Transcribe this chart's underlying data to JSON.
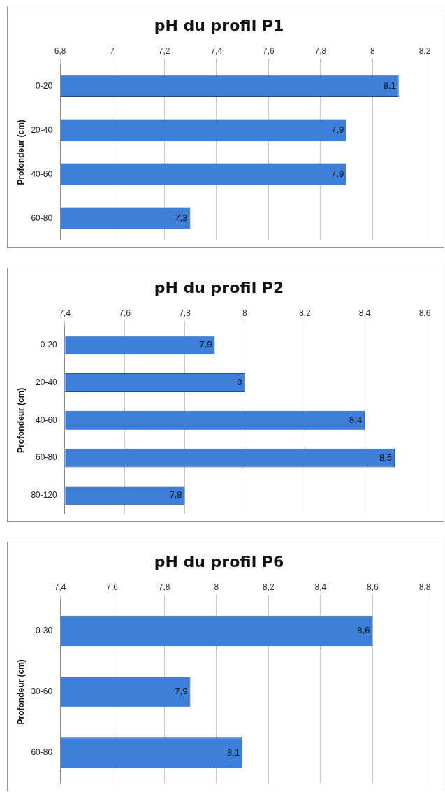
{
  "chart_data": [
    {
      "type": "bar",
      "orientation": "horizontal",
      "title": "pH du profil P1",
      "ylabel": "Profondeur (cm)",
      "categories": [
        "0-20",
        "20-40",
        "40-60",
        "60-80"
      ],
      "values": [
        8.1,
        7.9,
        7.9,
        7.3
      ],
      "value_labels": [
        "8,1",
        "7,9",
        "7,9",
        "7,3"
      ],
      "color": "#3d7fd9",
      "xlim": [
        6.8,
        8.2
      ],
      "xticks": [
        {
          "value": 6.8,
          "label": "6,8"
        },
        {
          "value": 7,
          "label": "7"
        },
        {
          "value": 7.2,
          "label": "7,2"
        },
        {
          "value": 7.4,
          "label": "7,4"
        },
        {
          "value": 7.6,
          "label": "7,6"
        },
        {
          "value": 7.8,
          "label": "7,8"
        },
        {
          "value": 8,
          "label": "8"
        },
        {
          "value": 8.2,
          "label": "8,2"
        }
      ],
      "grid": "x"
    },
    {
      "type": "bar",
      "orientation": "horizontal",
      "title": "pH du profil P2",
      "ylabel": "Profondeur (cm)",
      "categories": [
        "0-20",
        "20-40",
        "40-60",
        "60-80",
        "80-120"
      ],
      "values": [
        7.9,
        8,
        8.4,
        8.5,
        7.8
      ],
      "value_labels": [
        "7,9",
        "8",
        "8,4",
        "8,5",
        "7,8"
      ],
      "color": "#3d7fd9",
      "xlim": [
        7.4,
        8.6
      ],
      "xticks": [
        {
          "value": 7.4,
          "label": "7,4"
        },
        {
          "value": 7.6,
          "label": "7,6"
        },
        {
          "value": 7.8,
          "label": "7,8"
        },
        {
          "value": 8,
          "label": "8"
        },
        {
          "value": 8.2,
          "label": "8,2"
        },
        {
          "value": 8.4,
          "label": "8,4"
        },
        {
          "value": 8.6,
          "label": "8,6"
        }
      ],
      "grid": "x"
    },
    {
      "type": "bar",
      "orientation": "horizontal",
      "title": "pH du profil P6",
      "ylabel": "Profondeur (cm)",
      "categories": [
        "0-30",
        "30-60",
        "60-80"
      ],
      "values": [
        8.6,
        7.9,
        8.1
      ],
      "value_labels": [
        "8,6",
        "7,9",
        "8,1"
      ],
      "color": "#3d7fd9",
      "xlim": [
        7.4,
        8.8
      ],
      "xticks": [
        {
          "value": 7.4,
          "label": "7,4"
        },
        {
          "value": 7.6,
          "label": "7,6"
        },
        {
          "value": 7.8,
          "label": "7,8"
        },
        {
          "value": 8,
          "label": "8"
        },
        {
          "value": 8.2,
          "label": "8,2"
        },
        {
          "value": 8.4,
          "label": "8,4"
        },
        {
          "value": 8.6,
          "label": "8,6"
        },
        {
          "value": 8.8,
          "label": "8,8"
        }
      ],
      "grid": "x"
    }
  ]
}
